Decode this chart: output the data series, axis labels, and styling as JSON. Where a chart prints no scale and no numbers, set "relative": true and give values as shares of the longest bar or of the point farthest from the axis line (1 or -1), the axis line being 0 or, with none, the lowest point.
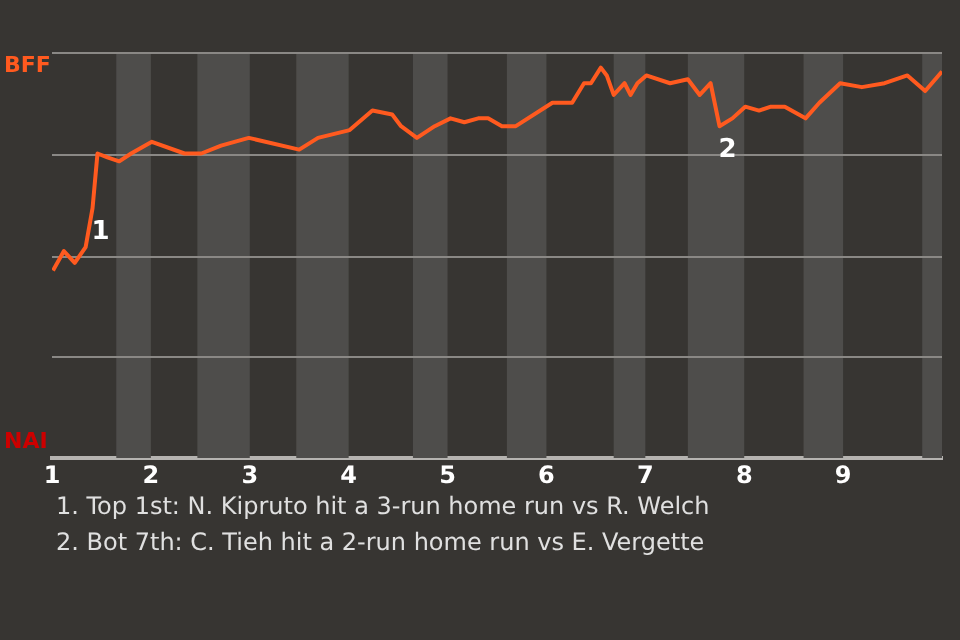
{
  "chart_data": {
    "type": "line",
    "relative": true,
    "x": [
      1.01,
      1.12,
      1.23,
      1.34,
      1.41,
      1.46,
      1.56,
      1.68,
      1.8,
      2.01,
      2.34,
      2.51,
      2.71,
      2.99,
      3.5,
      3.69,
      4.01,
      4.24,
      4.44,
      4.53,
      4.69,
      4.87,
      5.03,
      5.17,
      5.31,
      5.41,
      5.55,
      5.69,
      6.06,
      6.26,
      6.38,
      6.45,
      6.55,
      6.61,
      6.68,
      6.79,
      6.85,
      6.92,
      7.01,
      7.25,
      7.43,
      7.55,
      7.66,
      7.75,
      7.88,
      8.01,
      8.15,
      8.27,
      8.41,
      8.62,
      8.76,
      8.97,
      9.19,
      9.42,
      9.65,
      9.83,
      10
    ],
    "series": [
      {
        "color": "#ff5a1f",
        "values": [
          0.48,
          0.53,
          0.5,
          0.54,
          0.64,
          0.78,
          0.77,
          0.76,
          0.78,
          0.81,
          0.78,
          0.78,
          0.8,
          0.82,
          0.79,
          0.82,
          0.84,
          0.89,
          0.88,
          0.85,
          0.82,
          0.85,
          0.87,
          0.86,
          0.87,
          0.87,
          0.85,
          0.85,
          0.91,
          0.91,
          0.96,
          0.96,
          1,
          0.98,
          0.93,
          0.96,
          0.93,
          0.96,
          0.98,
          0.96,
          0.97,
          0.93,
          0.96,
          0.85,
          0.87,
          0.9,
          0.89,
          0.9,
          0.9,
          0.87,
          0.91,
          0.96,
          0.95,
          0.96,
          0.98,
          0.94,
          0.99
        ]
      }
    ],
    "xlim": [
      1,
      10
    ],
    "xticks": [
      1,
      2,
      3,
      4,
      5,
      6,
      7,
      8,
      9
    ],
    "tick_labels": "x",
    "grid": "y",
    "bands": [
      {
        "axis": "x",
        "from": 1.65,
        "to": 2,
        "color": "#4e4d4b"
      },
      {
        "axis": "x",
        "from": 2.47,
        "to": 3,
        "color": "#4e4d4b"
      },
      {
        "axis": "x",
        "from": 3.47,
        "to": 4,
        "color": "#4e4d4b"
      },
      {
        "axis": "x",
        "from": 4.65,
        "to": 5,
        "color": "#4e4d4b"
      },
      {
        "axis": "x",
        "from": 5.6,
        "to": 6,
        "color": "#4e4d4b"
      },
      {
        "axis": "x",
        "from": 6.68,
        "to": 7,
        "color": "#4e4d4b"
      },
      {
        "axis": "x",
        "from": 7.43,
        "to": 8,
        "color": "#4e4d4b"
      },
      {
        "axis": "x",
        "from": 8.6,
        "to": 9,
        "color": "#4e4d4b"
      },
      {
        "axis": "x",
        "from": 9.8,
        "to": 10,
        "color": "#4e4d4b"
      }
    ],
    "annotations": [
      "BFF",
      "NAI",
      {
        "text": "1",
        "x": 1.41,
        "y": 0.64
      },
      {
        "text": "2",
        "x": 7.75,
        "y": 0.85
      },
      "1. Top 1st: N. Kipruto hit a 3-run home run vs R. Welch",
      "2. Bot 7th: C. Tieh hit a 2-run home run vs E. Vergette"
    ],
    "legend": false,
    "marker": "none",
    "line_style": "solid"
  }
}
